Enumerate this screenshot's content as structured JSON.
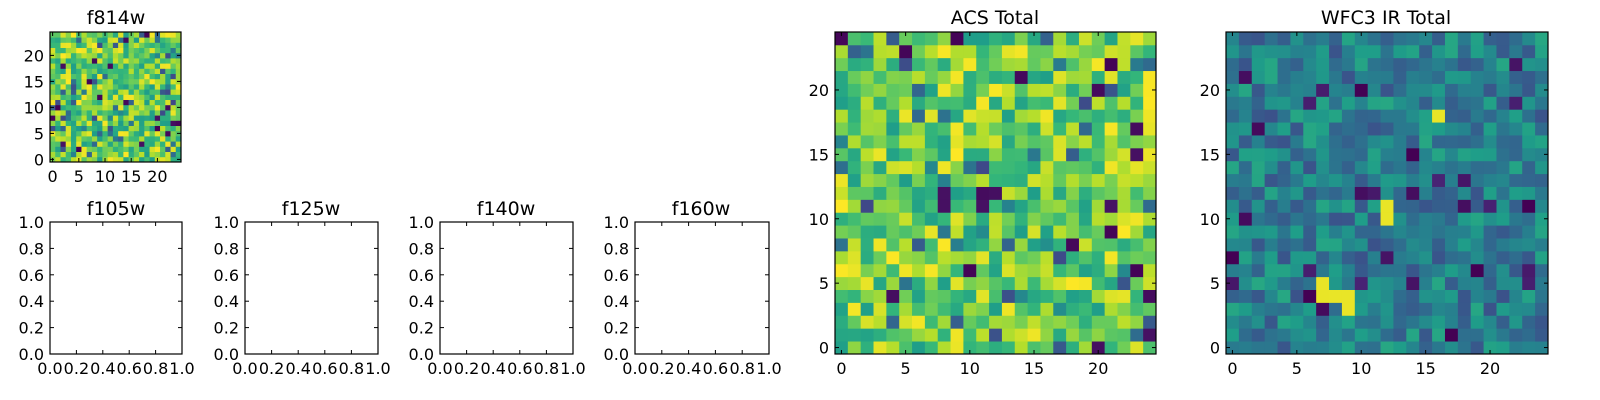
{
  "figure": {
    "colormap": "viridis"
  },
  "chart_data": [
    {
      "type": "heatmap",
      "title": "f814w",
      "grid": false,
      "xlim": [
        -0.5,
        24.5
      ],
      "ylim": [
        -0.5,
        24.5
      ],
      "xticks": [
        0,
        5,
        10,
        15,
        20
      ],
      "yticks": [
        0,
        5,
        10,
        15,
        20
      ],
      "xticklabels": [
        "0",
        "5",
        "10",
        "15",
        "20"
      ],
      "yticklabels": [
        "0",
        "5",
        "10",
        "15",
        "20"
      ],
      "rows": 25,
      "cols": 25,
      "value_range": [
        0,
        1
      ],
      "seed": 814,
      "note": "25x25 noise image, values mostly mid-high (green-yellow)"
    },
    {
      "type": "empty",
      "title": "f105w",
      "xlim": [
        0,
        1
      ],
      "ylim": [
        0,
        1
      ],
      "xticklabels": [
        "0.0",
        "0.2",
        "0.4",
        "0.6",
        "0.8",
        "1.0"
      ],
      "yticklabels": [
        "0.0",
        "0.2",
        "0.4",
        "0.6",
        "0.8",
        "1.0"
      ]
    },
    {
      "type": "empty",
      "title": "f125w",
      "xlim": [
        0,
        1
      ],
      "ylim": [
        0,
        1
      ],
      "xticklabels": [
        "0.0",
        "0.2",
        "0.4",
        "0.6",
        "0.8",
        "1.0"
      ],
      "yticklabels": [
        "0.0",
        "0.2",
        "0.4",
        "0.6",
        "0.8",
        "1.0"
      ]
    },
    {
      "type": "empty",
      "title": "f140w",
      "xlim": [
        0,
        1
      ],
      "ylim": [
        0,
        1
      ],
      "xticklabels": [
        "0.0",
        "0.2",
        "0.4",
        "0.6",
        "0.8",
        "1.0"
      ],
      "yticklabels": [
        "0.0",
        "0.2",
        "0.4",
        "0.6",
        "0.8",
        "1.0"
      ]
    },
    {
      "type": "empty",
      "title": "f160w",
      "xlim": [
        0,
        1
      ],
      "ylim": [
        0,
        1
      ],
      "xticklabels": [
        "0.0",
        "0.2",
        "0.4",
        "0.6",
        "0.8",
        "1.0"
      ],
      "yticklabels": [
        "0.0",
        "0.2",
        "0.4",
        "0.6",
        "0.8",
        "1.0"
      ]
    },
    {
      "type": "heatmap",
      "title": "ACS Total",
      "grid": false,
      "xlim": [
        -0.5,
        24.5
      ],
      "ylim": [
        -0.5,
        24.5
      ],
      "xticks": [
        0,
        5,
        10,
        15,
        20
      ],
      "yticks": [
        0,
        5,
        10,
        15,
        20
      ],
      "xticklabels": [
        "0",
        "5",
        "10",
        "15",
        "20"
      ],
      "yticklabels": [
        "0",
        "5",
        "10",
        "15",
        "20"
      ],
      "rows": 25,
      "cols": 25,
      "value_range": [
        0,
        1
      ],
      "seed": 2025,
      "note": "25x25 noise image, values mostly mid-high (green-yellow) with scattered dark pixels"
    },
    {
      "type": "heatmap",
      "title": "WFC3 IR Total",
      "grid": false,
      "xlim": [
        -0.5,
        24.5
      ],
      "ylim": [
        -0.5,
        24.5
      ],
      "xticks": [
        0,
        5,
        10,
        15,
        20
      ],
      "yticks": [
        0,
        5,
        10,
        15,
        20
      ],
      "xticklabels": [
        "0",
        "5",
        "10",
        "15",
        "20"
      ],
      "yticklabels": [
        "0",
        "5",
        "10",
        "15",
        "20"
      ],
      "rows": 25,
      "cols": 25,
      "value_range": [
        0,
        1
      ],
      "seed": 3160,
      "note": "25x25 noise image, values mostly low-mid (blue-teal) with a few bright pixels",
      "bright_pixels": [
        [
          7,
          4
        ],
        [
          7,
          5
        ],
        [
          8,
          4
        ],
        [
          9,
          4
        ],
        [
          9,
          3
        ],
        [
          12,
          11
        ],
        [
          12,
          10
        ],
        [
          16,
          18
        ]
      ],
      "dark_pixels": [
        [
          6,
          4
        ],
        [
          10,
          20
        ],
        [
          17,
          1
        ],
        [
          19,
          6
        ],
        [
          23,
          11
        ],
        [
          0,
          7
        ],
        [
          14,
          15
        ]
      ]
    }
  ]
}
